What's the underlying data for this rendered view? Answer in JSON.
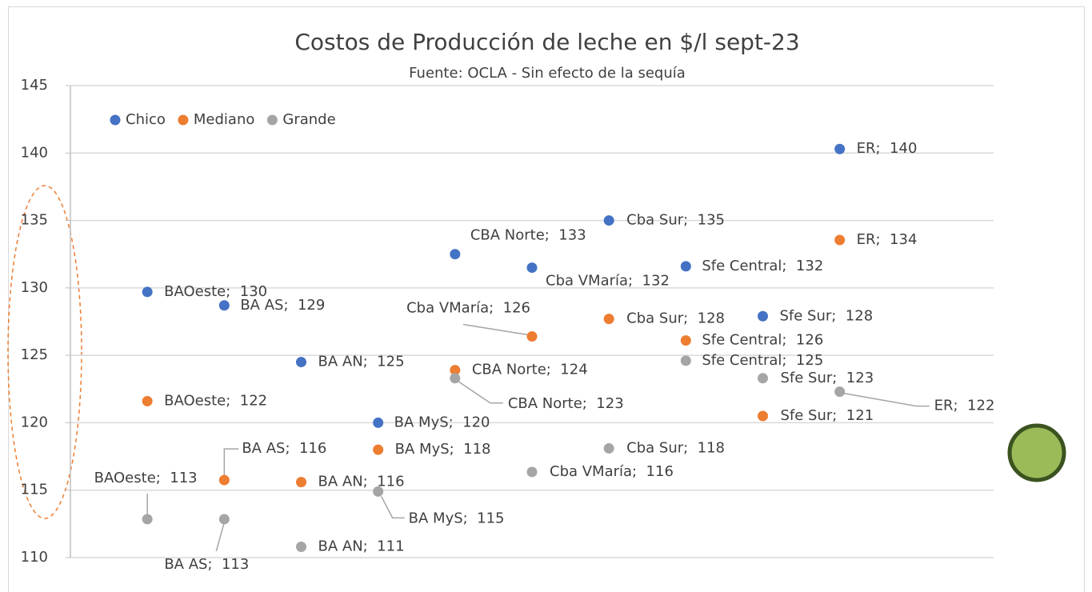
{
  "chart_data": {
    "type": "scatter",
    "title": "Costos de Producción de leche en $/l sept-23",
    "subtitle": "Fuente: OCLA - Sin efecto de la sequía",
    "x": [
      1,
      2,
      3,
      4,
      5,
      6,
      7,
      8,
      9,
      10
    ],
    "xlim": [
      0,
      12
    ],
    "ylim": [
      110,
      145
    ],
    "yticks": [
      110,
      115,
      120,
      125,
      130,
      135,
      140,
      145
    ],
    "grid": true,
    "legend": "top-left",
    "series": [
      {
        "name": "Chico",
        "color": "#4472c4",
        "values": [
          129.7,
          128.7,
          124.5,
          120.0,
          132.5,
          131.5,
          135.0,
          131.6,
          127.9,
          140.3
        ],
        "value_labels": [
          "BAOeste;  130",
          "BA AS;  129",
          "BA AN;  125",
          "BA MyS;  120",
          "CBA Norte;  133",
          "Cba VMaría;  132",
          "Cba Sur;  135",
          "Sfe Central;  132",
          "Sfe Sur;  128",
          "ER;  140"
        ]
      },
      {
        "name": "Mediano",
        "color": "#ed7d31",
        "values": [
          121.6,
          115.75,
          115.6,
          118.0,
          123.9,
          126.4,
          127.7,
          126.1,
          120.5,
          133.55
        ],
        "value_labels": [
          "BAOeste;  122",
          "BA AS;  116",
          "BA AN;  116",
          "BA MyS;  118",
          "CBA Norte;  124",
          "Cba VMaría;  126",
          "Cba Sur;  128",
          "Sfe Central;  126",
          "Sfe Sur;  121",
          "ER;  134"
        ]
      },
      {
        "name": "Grande",
        "color": "#a5a5a5",
        "values": [
          112.85,
          112.85,
          110.8,
          114.9,
          123.3,
          116.35,
          118.1,
          124.6,
          123.3,
          122.3
        ],
        "value_labels": [
          "BAOeste;  113",
          "BA AS;  113",
          "BA AN;  111",
          "BA MyS;  115",
          "CBA Norte;  123",
          "Cba VMaría;  116",
          "Cba Sur;  118",
          "Sfe Central;  125",
          "Sfe Sur;  123",
          "ER;  122"
        ]
      }
    ]
  }
}
